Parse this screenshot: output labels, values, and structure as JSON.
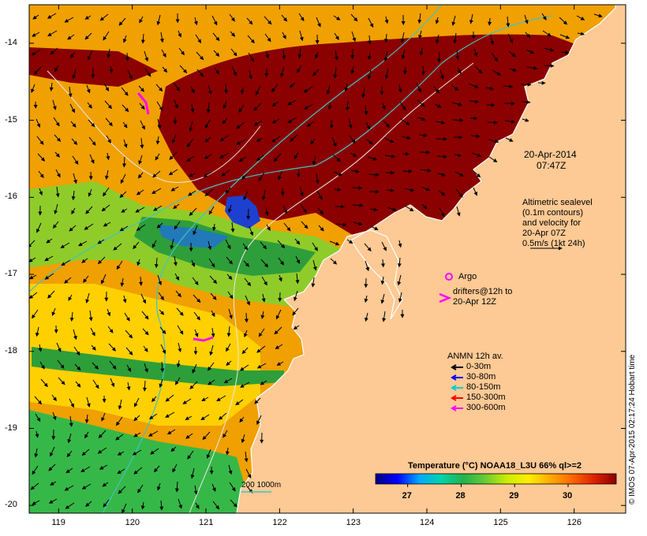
{
  "map": {
    "lon_range": [
      118.6,
      126.7
    ],
    "lat_range": [
      -20.1,
      -13.5
    ],
    "lon_ticks": [
      "119",
      "120",
      "121",
      "122",
      "123",
      "124",
      "125",
      "126"
    ],
    "lat_ticks": [
      "-14",
      "-15",
      "-16",
      "-17",
      "-18",
      "-19",
      "-20"
    ],
    "colors": {
      "land": "#fdc994",
      "sea_cold": "#2e9e3a",
      "sea_warm": "#8b0000",
      "coastline": "#ffffff",
      "contour": "#e0e0e0",
      "isobath": "#3fc4c4"
    }
  },
  "annotations": {
    "date": "20-Apr-2014",
    "time": "07:47Z",
    "altimetry": [
      "Altimetric sealevel",
      "(0.1m contours)",
      "and velocity for",
      "20-Apr 07Z",
      "0.5m/s (1kt 24h)"
    ],
    "argo": "Argo",
    "drifters": [
      "drifters@12h to",
      "20-Apr 12Z"
    ],
    "isobath_label": "200 1000m"
  },
  "anmn_legend": {
    "title": "ANMN 12h av.",
    "items": [
      {
        "label": "0-30m",
        "color": "#000000"
      },
      {
        "label": "30-80m",
        "color": "#0000ff"
      },
      {
        "label": "80-150m",
        "color": "#00d0d0"
      },
      {
        "label": "150-300m",
        "color": "#ff0000"
      },
      {
        "label": "300-600m",
        "color": "#ff00ff"
      }
    ]
  },
  "colorbar": {
    "title": "Temperature (°C) NOAA18_L3U 66% ql>=2",
    "range": [
      26.4,
      30.9
    ],
    "ticks": [
      "27",
      "28",
      "29",
      "30"
    ],
    "stops": [
      "#00007f",
      "#0000ff",
      "#00aaff",
      "#00d4aa",
      "#22b24c",
      "#66cc33",
      "#ccee00",
      "#ffee00",
      "#ffaa00",
      "#ff6600",
      "#e02000",
      "#8b0000"
    ]
  },
  "credit": "© IMOS 07-Apr-2015 02:17:24 Hobart time"
}
